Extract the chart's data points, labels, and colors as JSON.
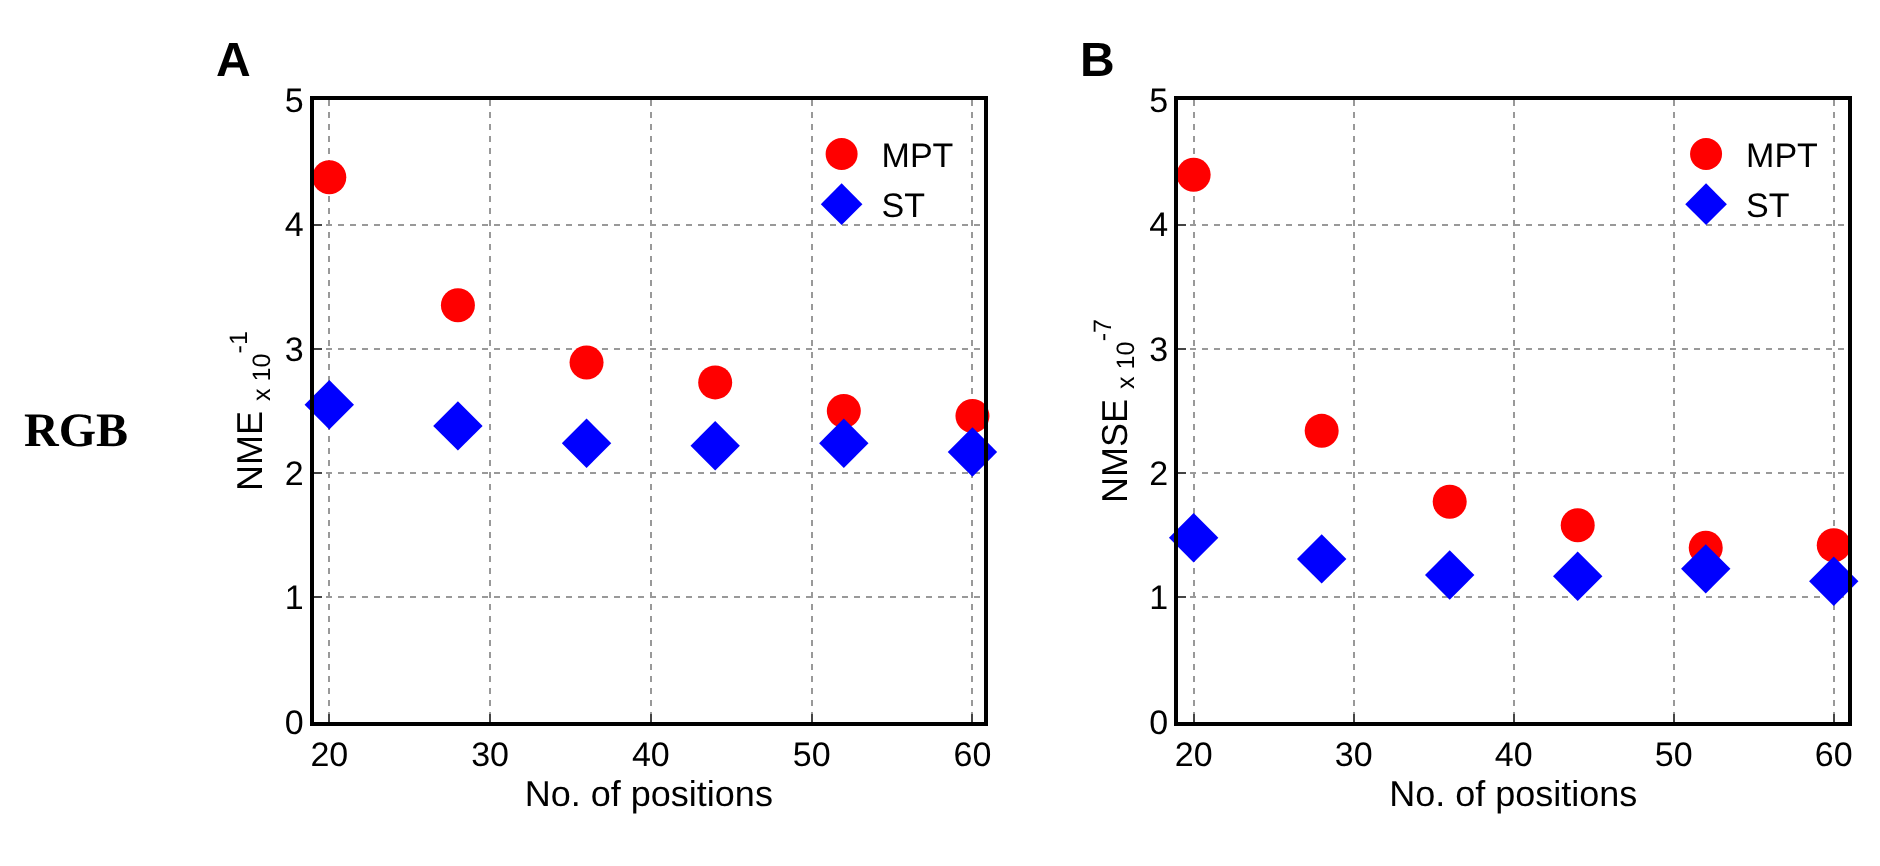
{
  "chart_data": [
    {
      "type": "scatter",
      "title": "A",
      "xlabel": "No. of positions",
      "ylabel": "NME $_{x 10}$$^{-1}$",
      "annotations": [
        "RGB"
      ],
      "x": [
        20,
        28,
        36,
        44,
        52,
        60
      ],
      "xlim": [
        19.05,
        60.7
      ],
      "xticks": [
        20,
        30,
        40,
        50,
        60
      ],
      "ylim": [
        0,
        5
      ],
      "yticks": [
        0,
        1,
        2,
        3,
        4,
        5
      ],
      "grid": true,
      "legend": "top right",
      "series": [
        {
          "name": "MPT",
          "color": "#ff0000",
          "marker": "circle",
          "values": [
            4.38,
            3.35,
            2.89,
            2.73,
            2.5,
            2.46
          ]
        },
        {
          "name": "ST",
          "color": "#0000ff",
          "marker": "diamond",
          "values": [
            2.55,
            2.38,
            2.24,
            2.22,
            2.24,
            2.17
          ]
        }
      ]
    },
    {
      "type": "scatter",
      "title": "B",
      "xlabel": "No. of positions",
      "ylabel": "NMSE $_{x 10}$$^{-7}$",
      "x": [
        20,
        28,
        36,
        44,
        52,
        60
      ],
      "xlim": [
        19.05,
        60.9
      ],
      "xticks": [
        20,
        30,
        40,
        50,
        60
      ],
      "ylim": [
        0,
        5
      ],
      "yticks": [
        0,
        1,
        2,
        3,
        4,
        5
      ],
      "grid": true,
      "legend": "top right",
      "series": [
        {
          "name": "MPT",
          "color": "#ff0000",
          "marker": "circle",
          "values": [
            4.4,
            2.34,
            1.77,
            1.58,
            1.4,
            1.42
          ]
        },
        {
          "name": "ST",
          "color": "#0000ff",
          "marker": "diamond",
          "values": [
            1.48,
            1.31,
            1.18,
            1.17,
            1.23,
            1.13
          ]
        }
      ]
    }
  ]
}
